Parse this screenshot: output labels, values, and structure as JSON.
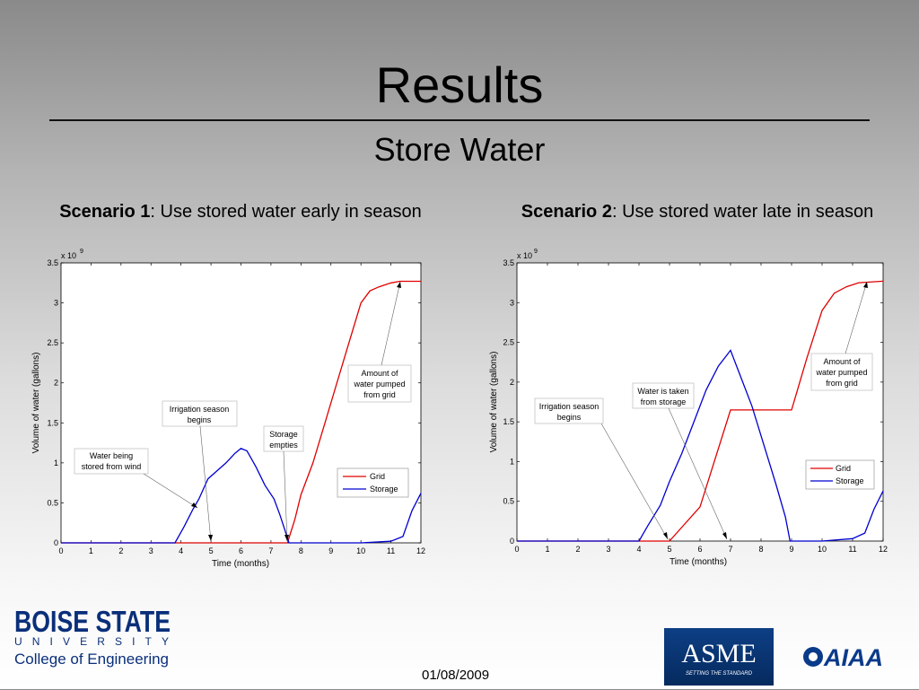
{
  "slide": {
    "title": "Results",
    "subtitle": "Store Water",
    "date": "01/08/2009"
  },
  "scenarios": [
    {
      "bold": "Scenario 1",
      "rest": ": Use stored water early in season"
    },
    {
      "bold": "Scenario 2",
      "rest": ": Use stored water late in season"
    }
  ],
  "logos": {
    "bsu_main": "BOISE STATE",
    "bsu_univ": "UNIVERSITY",
    "bsu_college": "College of Engineering",
    "asme_text": "ASME",
    "asme_tag": "SETTING THE STANDARD",
    "aiaa_text": "AIAA"
  },
  "chart_data": [
    {
      "type": "line",
      "xlabel": "Time (months)",
      "ylabel": "Volume of water (gallons)",
      "multiplier": "x 10",
      "multiplier_exp": "9",
      "xlim": [
        0,
        12
      ],
      "ylim": [
        0,
        3.5
      ],
      "xticks": [
        "0",
        "1",
        "2",
        "3",
        "4",
        "5",
        "6",
        "7",
        "8",
        "9",
        "10",
        "11",
        "12"
      ],
      "yticks": [
        "0",
        "0.5",
        "1",
        "1.5",
        "2",
        "2.5",
        "3",
        "3.5"
      ],
      "legend": {
        "position": "lower-right",
        "entries": [
          "Grid",
          "Storage"
        ]
      },
      "series": [
        {
          "name": "Grid",
          "color": "#e00000",
          "x": [
            0,
            7.55,
            7.8,
            8.0,
            8.4,
            8.8,
            9.2,
            9.6,
            10.0,
            10.3,
            10.6,
            11.0,
            11.3,
            12.0
          ],
          "y": [
            0,
            0,
            0.3,
            0.6,
            1.0,
            1.5,
            2.0,
            2.5,
            3.0,
            3.15,
            3.2,
            3.25,
            3.27,
            3.27
          ]
        },
        {
          "name": "Storage",
          "color": "#0000d0",
          "x": [
            0,
            3.8,
            4.1,
            4.4,
            4.6,
            4.9,
            5.2,
            5.5,
            5.8,
            6.0,
            6.2,
            6.5,
            6.8,
            7.1,
            7.3,
            7.5,
            7.6,
            8.0,
            9.0,
            10.0,
            11.0,
            11.4,
            11.7,
            12.0
          ],
          "y": [
            0,
            0,
            0.2,
            0.42,
            0.55,
            0.8,
            0.9,
            1.0,
            1.12,
            1.18,
            1.15,
            0.95,
            0.72,
            0.55,
            0.35,
            0.12,
            0,
            0,
            0,
            0,
            0.02,
            0.08,
            0.4,
            0.62
          ]
        }
      ],
      "annotations": [
        {
          "text": [
            "Water being",
            "stored from wind"
          ]
        },
        {
          "text": [
            "Irrigation season",
            "begins"
          ]
        },
        {
          "text": [
            "Storage",
            "empties"
          ]
        },
        {
          "text": [
            "Amount of",
            "water pumped",
            "from grid"
          ]
        }
      ]
    },
    {
      "type": "line",
      "xlabel": "Time (months)",
      "ylabel": "Volume of water (gallons)",
      "multiplier": "x 10",
      "multiplier_exp": "9",
      "xlim": [
        0,
        12
      ],
      "ylim": [
        0,
        3.5
      ],
      "xticks": [
        "0",
        "1",
        "2",
        "3",
        "4",
        "5",
        "6",
        "7",
        "8",
        "9",
        "10",
        "11",
        "12"
      ],
      "yticks": [
        "0",
        "0.5",
        "1",
        "1.5",
        "2",
        "2.5",
        "3",
        "3.5"
      ],
      "legend": {
        "position": "right",
        "entries": [
          "Grid",
          "Storage"
        ]
      },
      "series": [
        {
          "name": "Grid",
          "color": "#e00000",
          "x": [
            0,
            5.0,
            6.0,
            7.0,
            9.0,
            9.5,
            10.0,
            10.4,
            10.8,
            11.2,
            12.0
          ],
          "y": [
            0,
            0,
            0.43,
            1.65,
            1.65,
            2.3,
            2.9,
            3.12,
            3.2,
            3.25,
            3.27
          ]
        },
        {
          "name": "Storage",
          "color": "#0000d0",
          "x": [
            0,
            4.0,
            4.3,
            4.7,
            5.0,
            5.4,
            5.8,
            6.2,
            6.6,
            6.9,
            7.0,
            7.3,
            7.7,
            8.1,
            8.5,
            8.8,
            8.95,
            10.0,
            11.0,
            11.4,
            11.7,
            12.0
          ],
          "y": [
            0,
            0,
            0.2,
            0.45,
            0.75,
            1.1,
            1.5,
            1.9,
            2.2,
            2.35,
            2.4,
            2.1,
            1.7,
            1.2,
            0.7,
            0.3,
            0,
            0,
            0.03,
            0.1,
            0.4,
            0.63
          ]
        }
      ],
      "annotations": [
        {
          "text": [
            "Irrigation season",
            "begins"
          ]
        },
        {
          "text": [
            "Water is taken",
            "from storage"
          ]
        },
        {
          "text": [
            "Amount of",
            "water pumped",
            "from grid"
          ]
        }
      ]
    }
  ]
}
